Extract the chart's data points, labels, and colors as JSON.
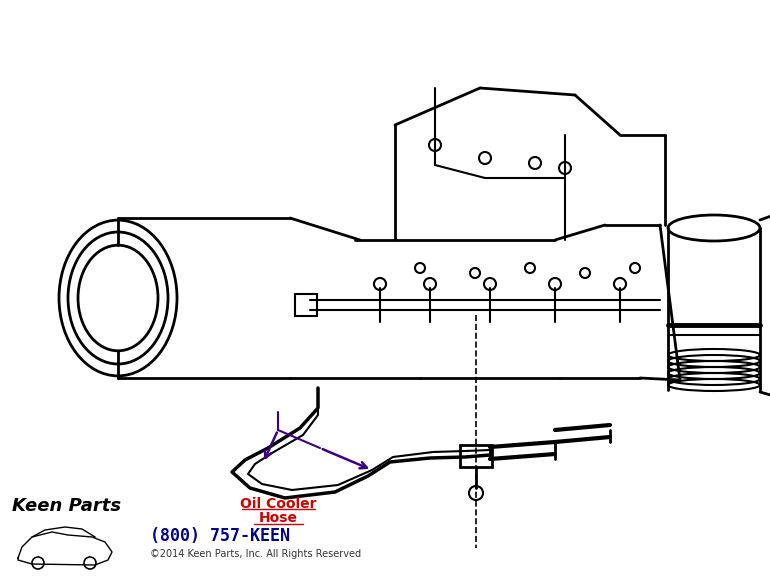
{
  "background_color": "#ffffff",
  "label_line1": "Oil Cooler",
  "label_line2": "Hose",
  "label_color": "#cc0000",
  "arrow_color": "#3b0080",
  "phone_text": "(800) 757-KEEN",
  "phone_color": "#00008b",
  "copyright_text": "©2014 Keen Parts, Inc. All Rights Reserved",
  "copyright_color": "#333333",
  "fig_width": 7.7,
  "fig_height": 5.79,
  "dpi": 100
}
